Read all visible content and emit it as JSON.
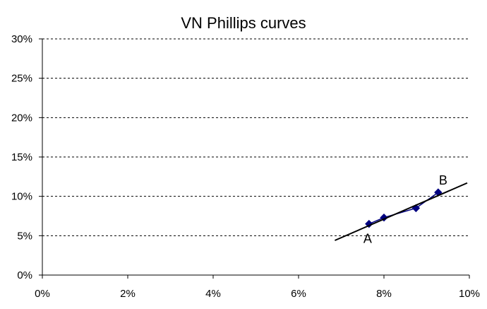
{
  "chart_data": {
    "type": "scatter",
    "title": "VN Phillips curves",
    "xlabel": "",
    "ylabel": "",
    "xlim": [
      0,
      10
    ],
    "ylim": [
      0,
      30
    ],
    "x_ticks": [
      "0%",
      "2%",
      "4%",
      "6%",
      "8%",
      "10%"
    ],
    "y_ticks": [
      "0%",
      "5%",
      "10%",
      "15%",
      "20%",
      "25%",
      "30%"
    ],
    "grid": "horizontal dashed",
    "series": [
      {
        "type": "line-markers",
        "color": "#000080",
        "points": [
          {
            "x": 7.65,
            "y": 6.5
          },
          {
            "x": 8.0,
            "y": 7.3
          },
          {
            "x": 8.75,
            "y": 8.5
          },
          {
            "x": 9.27,
            "y": 10.5
          }
        ]
      },
      {
        "type": "trendline",
        "color": "#000000",
        "points": [
          {
            "x": 6.85,
            "y": 4.4
          },
          {
            "x": 9.95,
            "y": 11.7
          }
        ]
      }
    ],
    "annotations": [
      {
        "text": "A",
        "x": 7.65,
        "y": 6.5
      },
      {
        "text": "B",
        "x": 9.27,
        "y": 10.5
      }
    ]
  }
}
